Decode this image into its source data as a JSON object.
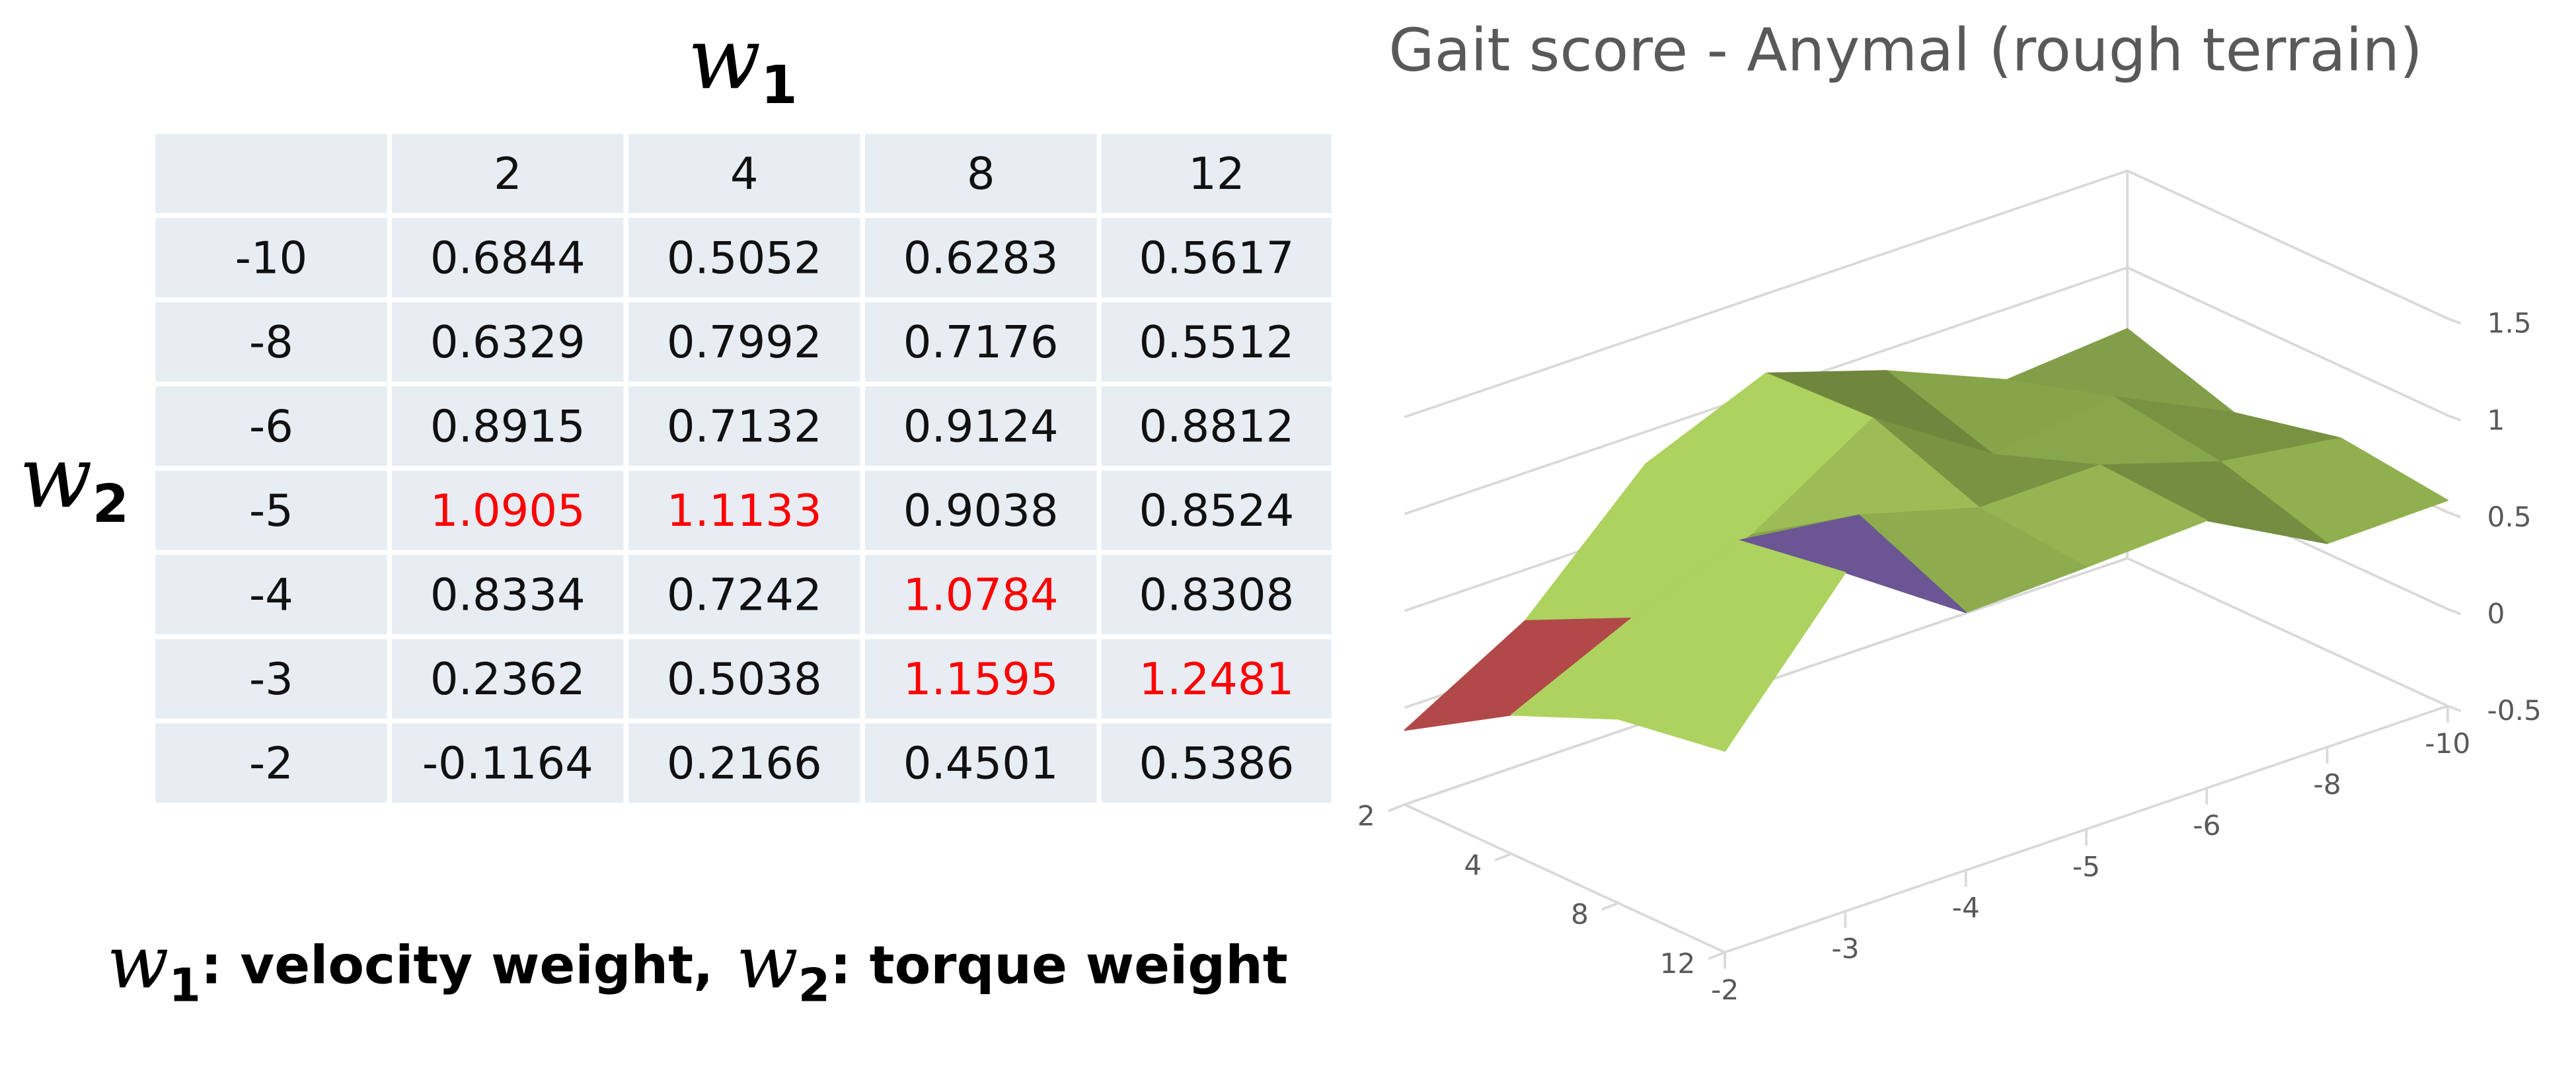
{
  "table": {
    "column_axis_label": {
      "symbol": "w",
      "subscript": "1"
    },
    "row_axis_label": {
      "symbol": "w",
      "subscript": "2"
    },
    "header": [
      null,
      2,
      4,
      8,
      12
    ],
    "rows": [
      {
        "label": -10,
        "cells": [
          0.6844,
          0.5052,
          0.6283,
          0.5617
        ]
      },
      {
        "label": -8,
        "cells": [
          0.6329,
          0.7992,
          0.7176,
          0.5512
        ]
      },
      {
        "label": -6,
        "cells": [
          0.8915,
          0.7132,
          0.9124,
          0.8812
        ]
      },
      {
        "label": -5,
        "cells": [
          1.0905,
          1.1133,
          0.9038,
          0.8524
        ],
        "highlighted": [
          0,
          1
        ]
      },
      {
        "label": -4,
        "cells": [
          0.8334,
          0.7242,
          1.0784,
          0.8308
        ],
        "highlighted": [
          2
        ]
      },
      {
        "label": -3,
        "cells": [
          0.2362,
          0.5038,
          1.1595,
          1.2481
        ],
        "highlighted": [
          2,
          3
        ]
      },
      {
        "label": -2,
        "cells": [
          -0.1164,
          0.2166,
          0.4501,
          0.5386
        ]
      }
    ],
    "highlight_color": "#ff0000"
  },
  "caption": [
    {
      "symbol": "w",
      "subscript": "1",
      "text": ": velocity weight,"
    },
    {
      "symbol": "w",
      "subscript": "2",
      "text": ": torque weight"
    }
  ],
  "chart_data": {
    "type": "surface",
    "title": "Gait score - Anymal (rough terrain)",
    "x": [
      2,
      4,
      8,
      12
    ],
    "y": [
      -10,
      -8,
      -6,
      -5,
      -4,
      -3,
      -2
    ],
    "values": [
      [
        0.6844,
        0.5052,
        0.6283,
        0.5617
      ],
      [
        0.6329,
        0.7992,
        0.7176,
        0.5512
      ],
      [
        0.8915,
        0.7132,
        0.9124,
        0.8812
      ],
      [
        1.0905,
        1.1133,
        0.9038,
        0.8524
      ],
      [
        0.8334,
        0.7242,
        1.0784,
        0.8308
      ],
      [
        0.2362,
        0.5038,
        1.1595,
        1.2481
      ],
      [
        -0.1164,
        0.2166,
        0.4501,
        0.5386
      ]
    ],
    "zlim": [
      -0.5,
      1.5
    ],
    "zticks": [
      -0.5,
      0,
      0.5,
      1,
      1.5
    ],
    "band_colors": [
      "#3b5e8c",
      "#8e3a3a",
      "#8aa84c",
      "#7e66ad"
    ],
    "grid": true
  }
}
